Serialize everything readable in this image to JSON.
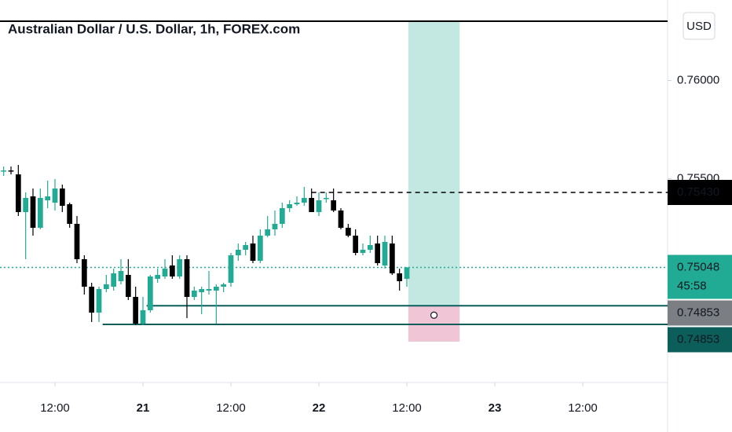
{
  "chart_data": {
    "type": "candlestick",
    "title": "Australian Dollar / U.S. Dollar, 1h, FOREX.com",
    "currency_button": "USD",
    "x": [
      -19,
      -18,
      -17,
      -16,
      -15,
      -14,
      -13,
      -12,
      -11,
      -10,
      -9,
      -8,
      -7,
      -6,
      -5,
      -4,
      -3,
      -2,
      -1,
      0,
      1,
      2,
      3,
      4,
      5,
      6,
      7,
      8,
      9,
      10,
      11,
      12,
      13,
      14,
      15,
      16,
      17,
      18,
      19,
      20,
      21,
      22,
      23,
      24,
      25,
      26,
      27,
      28,
      29,
      30,
      31,
      32,
      33,
      34,
      35,
      36
    ],
    "open": [
      0.75538,
      0.75542,
      0.75522,
      0.7533,
      0.7541,
      0.7525,
      0.7539,
      0.75378,
      0.7545,
      0.7537,
      0.7527,
      0.7509,
      0.7495,
      0.74818,
      0.74938,
      0.7495,
      0.74978,
      0.7501,
      0.74898,
      0.74762,
      0.7483,
      0.7499,
      0.75002,
      0.75058,
      0.75002,
      0.7509,
      0.74898,
      0.74922,
      0.7493,
      0.7493,
      0.7495,
      0.7497,
      0.7511,
      0.75138,
      0.7517,
      0.75082,
      0.7521,
      0.75242,
      0.7527,
      0.7535,
      0.7537,
      0.75378,
      0.75402,
      0.7533,
      0.75398,
      0.7539,
      0.75338,
      0.7525,
      0.7521,
      0.75122,
      0.75138,
      0.7517,
      0.75058,
      0.7517,
      0.75018,
      0.7499
    ],
    "high": [
      0.75562,
      0.75562,
      0.7557,
      0.7543,
      0.7545,
      0.7545,
      0.7549,
      0.75498,
      0.7547,
      0.75378,
      0.7531,
      0.7511,
      0.7497,
      0.7495,
      0.7501,
      0.75042,
      0.7509,
      0.7509,
      0.7495,
      0.74898,
      0.7501,
      0.75042,
      0.7509,
      0.7511,
      0.7511,
      0.7511,
      0.7495,
      0.7495,
      0.7503,
      0.74962,
      0.7497,
      0.75122,
      0.7517,
      0.75178,
      0.7521,
      0.75242,
      0.7531,
      0.75338,
      0.75378,
      0.7539,
      0.7541,
      0.75458,
      0.7545,
      0.7543,
      0.7543,
      0.7545,
      0.7535,
      0.7527,
      0.75242,
      0.7517,
      0.7521,
      0.7521,
      0.7521,
      0.7521,
      0.75042,
      0.7505
    ],
    "low": [
      0.75514,
      0.75522,
      0.7531,
      0.7509,
      0.7521,
      0.75242,
      0.7535,
      0.75338,
      0.7533,
      0.7525,
      0.7507,
      0.7491,
      0.7477,
      0.7477,
      0.74922,
      0.7493,
      0.74962,
      0.74882,
      0.74754,
      0.74754,
      0.74818,
      0.7497,
      0.7499,
      0.7499,
      0.7499,
      0.7479,
      0.74882,
      0.7481,
      0.7491,
      0.74762,
      0.74922,
      0.7495,
      0.75082,
      0.7511,
      0.7507,
      0.7507,
      0.75202,
      0.7521,
      0.7525,
      0.7533,
      0.75362,
      0.75362,
      0.7533,
      0.7531,
      0.75378,
      0.7533,
      0.75242,
      0.75202,
      0.7511,
      0.7511,
      0.75122,
      0.75058,
      0.75042,
      0.7501,
      0.7493,
      0.7495
    ],
    "close": [
      0.75542,
      0.75538,
      0.7533,
      0.75402,
      0.7525,
      0.75402,
      0.7541,
      0.7545,
      0.75362,
      0.7527,
      0.7509,
      0.7495,
      0.74818,
      0.74938,
      0.74962,
      0.75018,
      0.7503,
      0.74898,
      0.74762,
      0.7483,
      0.75002,
      0.7501,
      0.75042,
      0.75002,
      0.7509,
      0.74898,
      0.7493,
      0.74938,
      0.74938,
      0.7495,
      0.74962,
      0.7511,
      0.75138,
      0.75162,
      0.75082,
      0.7521,
      0.75242,
      0.7527,
      0.7535,
      0.7537,
      0.75378,
      0.75402,
      0.7533,
      0.7539,
      0.75402,
      0.75338,
      0.7525,
      0.7521,
      0.75122,
      0.75138,
      0.75162,
      0.7507,
      0.75178,
      0.75018,
      0.74978,
      0.75048
    ],
    "up_color": "#22ab94",
    "down_color": "#000000",
    "xlim": [
      -19.5,
      71.57
    ],
    "ylim": [
      0.74462,
      0.7641
    ],
    "xticks": [
      {
        "value": -12,
        "label": "12:00"
      },
      {
        "value": 0,
        "label": "21"
      },
      {
        "value": 12,
        "label": "12:00"
      },
      {
        "value": 24,
        "label": "22"
      },
      {
        "value": 36,
        "label": "12:00"
      },
      {
        "value": 48,
        "label": "23"
      },
      {
        "value": 60,
        "label": "12:00"
      }
    ],
    "yticks": [
      {
        "value": 0.76,
        "label": "0.76000"
      },
      {
        "value": 0.755,
        "label": "0.75500"
      }
    ],
    "lines": [
      {
        "value": 0.76302,
        "color": "#000000",
        "style": "solid",
        "from": -19.5
      },
      {
        "value": 0.7543,
        "color": "#000000",
        "style": "dashed",
        "from": 23
      },
      {
        "value": 0.75048,
        "color": "#22ab94",
        "style": "dotted",
        "from": -19.5
      },
      {
        "value": 0.74853,
        "color": "#0b5e5a",
        "style": "solid",
        "from": 0.5
      },
      {
        "value": 0.74758,
        "color": "#0b5e5a",
        "style": "solid",
        "from": -5.5
      }
    ],
    "position": {
      "from": 36.2,
      "to": 43.2,
      "entry": 0.74853,
      "target": 0.76302,
      "stop": 0.7467
    },
    "markers": [
      {
        "value": 0.7543,
        "label": "0.75430",
        "color": "#000000"
      },
      {
        "value": 0.75048,
        "label": "0.75048",
        "sublabel": "45:58",
        "color": "#22ab94"
      },
      {
        "value": 0.74853,
        "label": "0.74853",
        "color": "#7b7f84"
      },
      {
        "value": 0.74853,
        "label": "0.74853",
        "color": "#0b5e5a"
      }
    ]
  }
}
